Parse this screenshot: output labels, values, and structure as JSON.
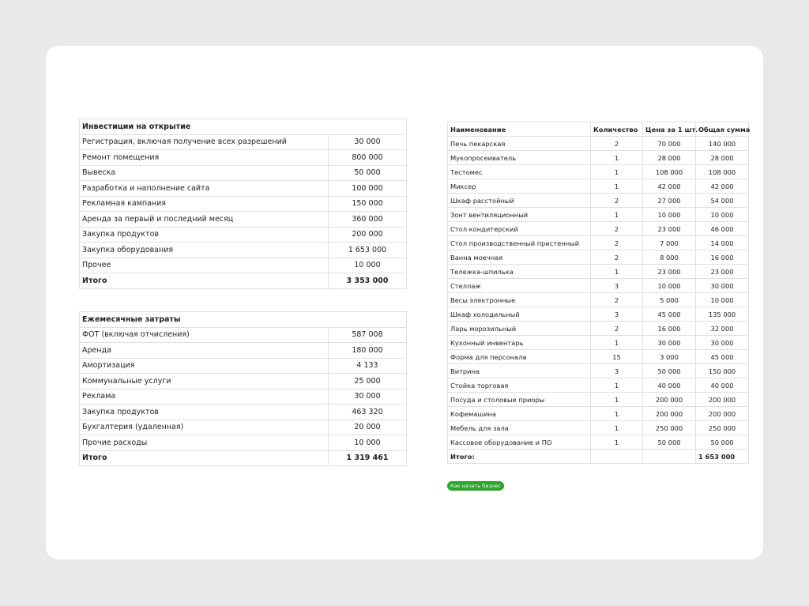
{
  "investments": {
    "title": "Инвестиции на открытие",
    "rows": [
      [
        "Регистрация, включая получение всех разрешений",
        "30 000"
      ],
      [
        "Ремонт помещения",
        "800 000"
      ],
      [
        "Вывеска",
        "50 000"
      ],
      [
        "Разработка и наполнение сайта",
        "100 000"
      ],
      [
        "Рекламная кампания",
        "150 000"
      ],
      [
        "Аренда за первый и последний месяц",
        "360 000"
      ],
      [
        "Закупка продуктов",
        "200 000"
      ],
      [
        "Закупка оборудования",
        "1 653 000"
      ],
      [
        "Прочее",
        "10 000"
      ]
    ],
    "total": [
      "Итого",
      "3 353 000"
    ]
  },
  "monthly": {
    "title": "Ежемесячные затраты",
    "rows": [
      [
        "ФОТ (включая отчисления)",
        "587 008"
      ],
      [
        "Аренда",
        "180 000"
      ],
      [
        "Амортизация",
        "4 133"
      ],
      [
        "Коммунальные услуги",
        "25 000"
      ],
      [
        "Реклама",
        "30 000"
      ],
      [
        "Закупка продуктов",
        "463 320"
      ],
      [
        "Бухгалтерия (удаленная)",
        "20 000"
      ],
      [
        "Прочие расходы",
        "10 000"
      ]
    ],
    "total": [
      "Итого",
      "1 319 461"
    ]
  },
  "equipment": {
    "header": [
      "Наименование",
      "Количество",
      "Цена за 1 шт.",
      "Общая сумма"
    ],
    "rows": [
      [
        "Печь пекарская",
        "2",
        "70 000",
        "140 000"
      ],
      [
        "Мукопросеиватель",
        "1",
        "28 000",
        "28 000"
      ],
      [
        "Тестомес",
        "1",
        "108 000",
        "108 000"
      ],
      [
        "Миксер",
        "1",
        "42 000",
        "42 000"
      ],
      [
        "Шкаф расстойный",
        "2",
        "27 000",
        "54 000"
      ],
      [
        "Зонт вентиляционный",
        "1",
        "10 000",
        "10 000"
      ],
      [
        "Стол кондитерский",
        "2",
        "23 000",
        "46 000"
      ],
      [
        "Стол производственный пристенный",
        "2",
        "7 000",
        "14 000"
      ],
      [
        "Ванна моечная",
        "2",
        "8 000",
        "16 000"
      ],
      [
        "Тележка-шпилька",
        "1",
        "23 000",
        "23 000"
      ],
      [
        "Стеллаж",
        "3",
        "10 000",
        "30 000"
      ],
      [
        "Весы электронные",
        "2",
        "5 000",
        "10 000"
      ],
      [
        "Шкаф холодильный",
        "3",
        "45 000",
        "135 000"
      ],
      [
        "Ларь морозильный",
        "2",
        "16 000",
        "32 000"
      ],
      [
        "Кухонный инвентарь",
        "1",
        "30 000",
        "30 000"
      ],
      [
        "Форма для персонала",
        "15",
        "3 000",
        "45 000"
      ],
      [
        "Витрина",
        "3",
        "50 000",
        "150 000"
      ],
      [
        "Стойка торговая",
        "1",
        "40 000",
        "40 000"
      ],
      [
        "Посуда и столовые приоры",
        "1",
        "200 000",
        "200 000"
      ],
      [
        "Кофемашина",
        "1",
        "200 000",
        "200 000"
      ],
      [
        "Мебель для зала",
        "1",
        "250 000",
        "250 000"
      ],
      [
        "Кассовое оборудование и ПО",
        "1",
        "50 000",
        "50 000"
      ]
    ],
    "total": {
      "label": "Итого:",
      "sum": "1 653 000"
    }
  },
  "badge": "Как начать бизнес"
}
